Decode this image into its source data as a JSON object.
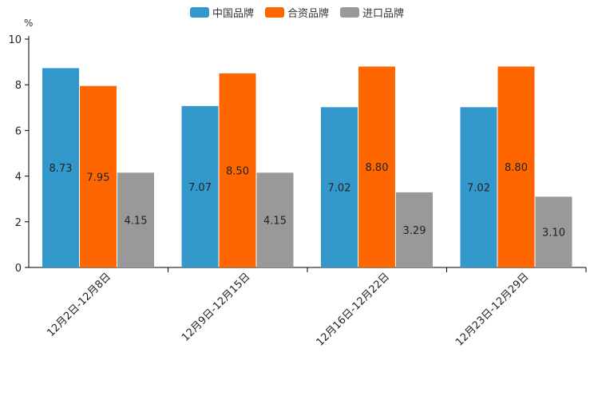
{
  "chart_data": {
    "type": "bar",
    "unit": "%",
    "categories": [
      "12月2日-12月8日",
      "12月9日-12月15日",
      "12月16日-12月22日",
      "12月23日-12月29日"
    ],
    "series": [
      {
        "name": "中国品牌",
        "color": "#3399cc",
        "values": [
          8.73,
          7.07,
          7.02,
          7.02
        ],
        "labels": [
          "8.73",
          "7.07",
          "7.02",
          "7.02"
        ]
      },
      {
        "name": "合资品牌",
        "color": "#ff6600",
        "values": [
          7.95,
          8.5,
          8.8,
          8.8
        ],
        "labels": [
          "7.95",
          "8.50",
          "8.80",
          "8.80"
        ]
      },
      {
        "name": "进口品牌",
        "color": "#999999",
        "values": [
          4.15,
          4.15,
          3.29,
          3.1
        ],
        "labels": [
          "4.15",
          "4.15",
          "3.29",
          "3.10"
        ]
      }
    ],
    "yticks": [
      "0",
      "2",
      "4",
      "6",
      "8",
      "10"
    ],
    "ylim": [
      0,
      10
    ],
    "grid": false,
    "legend_position": "top-center"
  }
}
